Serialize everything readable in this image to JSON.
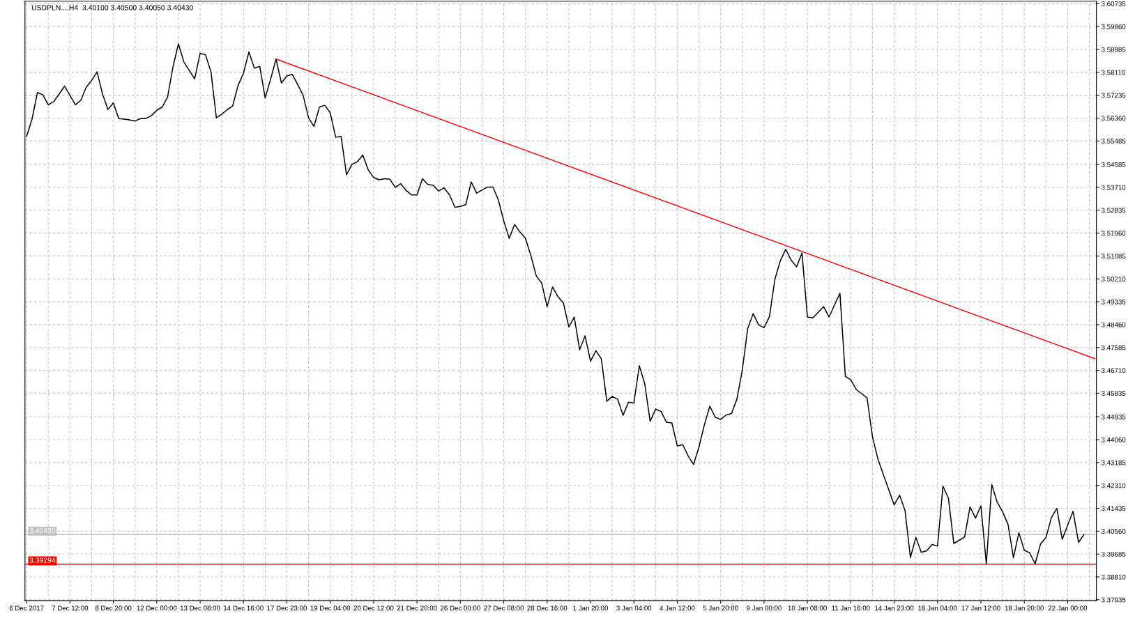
{
  "chart_data": {
    "type": "line",
    "title": "USDPLN...,H4  3.40100 3.40500 3.40050 3.40430",
    "categories": [
      "6 Dec 2017",
      null,
      null,
      null,
      null,
      null,
      null,
      null,
      "7 Dec 12:00",
      null,
      null,
      null,
      null,
      null,
      null,
      null,
      "8 Dec 20:00",
      null,
      null,
      null,
      null,
      null,
      null,
      null,
      "12 Dec 00:00",
      null,
      null,
      null,
      null,
      null,
      null,
      null,
      "13 Dec 08:00",
      null,
      null,
      null,
      null,
      null,
      null,
      null,
      "14 Dec 16:00",
      null,
      null,
      null,
      null,
      null,
      null,
      null,
      "17 Dec 23:00",
      null,
      null,
      null,
      null,
      null,
      null,
      null,
      "19 Dec 04:00",
      null,
      null,
      null,
      null,
      null,
      null,
      null,
      "20 Dec 12:00",
      null,
      null,
      null,
      null,
      null,
      null,
      null,
      "21 Dec 20:00",
      null,
      null,
      null,
      null,
      null,
      null,
      null,
      "26 Dec 00:00",
      null,
      null,
      null,
      null,
      null,
      null,
      null,
      "27 Dec 08:00",
      null,
      null,
      null,
      null,
      null,
      null,
      null,
      "28 Dec 16:00",
      null,
      null,
      null,
      null,
      null,
      null,
      null,
      "1 Jan 20:00",
      null,
      null,
      null,
      null,
      null,
      null,
      null,
      "3 Jan 04:00",
      null,
      null,
      null,
      null,
      null,
      null,
      null,
      "4 Jan 12:00",
      null,
      null,
      null,
      null,
      null,
      null,
      null,
      "5 Jan 20:00",
      null,
      null,
      null,
      null,
      null,
      null,
      null,
      "9 Jan 00:00",
      null,
      null,
      null,
      null,
      null,
      null,
      null,
      "10 Jan 08:00",
      null,
      null,
      null,
      null,
      null,
      null,
      null,
      "11 Jan 16:00",
      null,
      null,
      null,
      null,
      null,
      null,
      null,
      "14 Jan 23:00",
      null,
      null,
      null,
      null,
      null,
      null,
      null,
      "16 Jan 04:00",
      null,
      null,
      null,
      null,
      null,
      null,
      null,
      "17 Jan 12:00",
      null,
      null,
      null,
      null,
      null,
      null,
      null,
      "18 Jan 20:00",
      null,
      null,
      null,
      null,
      null,
      null,
      null,
      "22 Jan 00:00",
      null,
      null,
      null,
      null,
      null
    ],
    "series": [
      {
        "color": "#000000",
        "values": [
          3.5566,
          3.5632,
          3.5734,
          3.5725,
          3.5687,
          3.5699,
          3.5728,
          3.5758,
          3.5723,
          3.5687,
          3.5704,
          3.5754,
          3.578,
          3.5813,
          3.5728,
          3.5669,
          3.5694,
          3.5634,
          3.5632,
          3.5629,
          3.5625,
          3.5634,
          3.5635,
          3.5645,
          3.5666,
          3.5678,
          3.5716,
          3.5832,
          3.592,
          3.5851,
          3.5818,
          3.5786,
          3.5884,
          3.5878,
          3.5813,
          3.5637,
          3.5651,
          3.5668,
          3.5682,
          3.5761,
          3.5808,
          3.5889,
          3.5827,
          3.5834,
          3.5713,
          3.5785,
          3.5862,
          3.577,
          3.5797,
          3.5803,
          3.5764,
          3.5723,
          3.5637,
          3.5604,
          3.5678,
          3.5685,
          3.5656,
          3.5563,
          3.5566,
          3.5419,
          3.5459,
          3.5469,
          3.5495,
          3.5438,
          3.5409,
          3.54,
          3.5404,
          3.5402,
          3.5371,
          3.5385,
          3.5359,
          3.5342,
          3.5342,
          3.5404,
          3.5382,
          3.5379,
          3.5357,
          3.5369,
          3.5342,
          3.5295,
          3.5298,
          3.5305,
          3.5392,
          3.5349,
          3.5361,
          3.5372,
          3.5372,
          3.5323,
          3.5243,
          3.5176,
          3.5229,
          3.52,
          3.5176,
          3.511,
          3.5032,
          3.5005,
          3.4914,
          3.499,
          3.4953,
          3.4929,
          3.4837,
          3.4875,
          3.475,
          3.4803,
          3.4706,
          3.4746,
          3.4715,
          3.4553,
          3.4571,
          3.4561,
          3.4499,
          3.4549,
          3.4546,
          3.4689,
          3.462,
          3.4476,
          3.4523,
          3.4514,
          3.4473,
          3.447,
          3.4382,
          3.4387,
          3.4344,
          3.4311,
          3.4378,
          3.4463,
          3.4534,
          3.4492,
          3.4483,
          3.45,
          3.4506,
          3.4561,
          3.4673,
          3.4832,
          3.4888,
          3.4845,
          3.4834,
          3.4877,
          3.5019,
          3.509,
          3.5134,
          3.5093,
          3.5067,
          3.512,
          3.4875,
          3.4872,
          3.4893,
          3.4915,
          3.4875,
          3.4921,
          3.4966,
          3.4648,
          3.4635,
          3.4598,
          3.4582,
          3.4566,
          3.4417,
          3.4332,
          3.4273,
          3.4215,
          3.4156,
          3.4194,
          3.4135,
          3.3955,
          3.4032,
          3.3975,
          3.3981,
          3.4005,
          3.3999,
          3.4228,
          3.4183,
          3.4009,
          3.4021,
          3.4034,
          3.4149,
          3.4106,
          3.4153,
          3.393,
          3.4234,
          3.4167,
          3.413,
          3.4082,
          3.3955,
          3.405,
          3.3983,
          3.3973,
          3.3931,
          3.4007,
          3.4032,
          3.4108,
          3.4143,
          3.4025,
          3.4079,
          3.4132,
          3.4013,
          3.4043,
          null,
          null
        ]
      },
      {
        "color": "#ff0000",
        "values": [
          null,
          null,
          null,
          null,
          null,
          null,
          null,
          null,
          null,
          null,
          null,
          null,
          null,
          null,
          null,
          null,
          null,
          null,
          null,
          null,
          null,
          null,
          null,
          null,
          null,
          null,
          null,
          null,
          null,
          null,
          null,
          null,
          null,
          null,
          null,
          null,
          null,
          null,
          null,
          null,
          null,
          null,
          null,
          null,
          null,
          null,
          3.5862,
          null,
          null,
          null,
          null,
          null,
          null,
          null,
          null,
          null,
          null,
          null,
          null,
          null,
          null,
          null,
          null,
          null,
          null,
          null,
          null,
          null,
          null,
          null,
          null,
          null,
          null,
          null,
          null,
          null,
          null,
          null,
          null,
          null,
          null,
          null,
          null,
          null,
          null,
          null,
          null,
          null,
          null,
          null,
          null,
          null,
          null,
          null,
          null,
          null,
          null,
          null,
          null,
          null,
          null,
          null,
          null,
          null,
          null,
          null,
          null,
          null,
          null,
          null,
          null,
          null,
          null,
          null,
          null,
          null,
          null,
          null,
          null,
          null,
          null,
          null,
          null,
          null,
          null,
          null,
          null,
          null,
          null,
          null,
          null,
          null,
          null,
          null,
          null,
          null,
          null,
          null,
          null,
          null,
          null,
          null,
          null,
          null,
          null,
          null,
          null,
          null,
          null,
          null,
          null,
          null,
          null,
          null,
          null,
          null,
          null,
          null,
          null,
          null,
          null,
          null,
          null,
          null,
          null,
          null,
          null,
          null,
          null,
          null,
          null,
          null,
          null,
          null,
          null,
          null,
          null,
          null,
          null,
          null,
          null,
          null,
          null,
          null,
          null,
          null,
          null,
          null,
          null,
          null,
          null,
          null,
          null,
          null,
          null,
          null,
          null,
          3.4716
        ]
      }
    ],
    "ylim": [
      3.379,
      3.6083
    ],
    "yticks": [
      {
        "value": 3.60735,
        "label": "3.60735"
      },
      {
        "value": 3.5986,
        "label": "3.59860"
      },
      {
        "value": 3.58985,
        "label": "3.58985"
      },
      {
        "value": 3.5811,
        "label": "3.58110"
      },
      {
        "value": 3.57235,
        "label": "3.57235"
      },
      {
        "value": 3.5636,
        "label": "3.56360"
      },
      {
        "value": 3.55485,
        "label": "3.55485"
      },
      {
        "value": 3.54585,
        "label": "3.54585"
      },
      {
        "value": 3.5371,
        "label": "3.53710"
      },
      {
        "value": 3.52835,
        "label": "3.52835"
      },
      {
        "value": 3.5196,
        "label": "3.51960"
      },
      {
        "value": 3.51085,
        "label": "3.51085"
      },
      {
        "value": 3.5021,
        "label": "3.50210"
      },
      {
        "value": 3.49335,
        "label": "3.49335"
      },
      {
        "value": 3.4846,
        "label": "3.48460"
      },
      {
        "value": 3.47585,
        "label": "3.47585"
      },
      {
        "value": 3.4671,
        "label": "3.46710"
      },
      {
        "value": 3.45835,
        "label": "3.45835"
      },
      {
        "value": 3.44935,
        "label": "3.44935"
      },
      {
        "value": 3.4406,
        "label": "3.44060"
      },
      {
        "value": 3.43185,
        "label": "3.43185"
      },
      {
        "value": 3.4231,
        "label": "3.42310"
      },
      {
        "value": 3.41435,
        "label": "3.41435"
      },
      {
        "value": 3.4056,
        "label": "3.40560"
      },
      {
        "value": 3.39685,
        "label": "3.39685"
      },
      {
        "value": 3.3881,
        "label": "3.38810"
      },
      {
        "value": 3.37935,
        "label": "3.37935"
      }
    ],
    "ref_lines": [
      {
        "axis": "y",
        "value": 3.4043,
        "label": "3.40430",
        "color": "#c0c0c0"
      },
      {
        "axis": "y",
        "value": 3.39294,
        "label": "3.39294",
        "color": "#ff0000"
      }
    ],
    "grid": true,
    "marker": "none",
    "line_style": "solid"
  }
}
